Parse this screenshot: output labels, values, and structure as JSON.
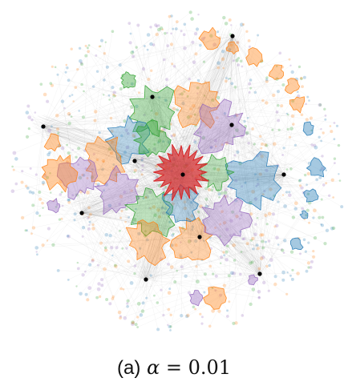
{
  "caption": {
    "label": "(a)",
    "symbol": "α",
    "equals": "=",
    "value": "0.01"
  },
  "colors": {
    "red": "#d62728",
    "blue": "#1f77b4",
    "green": "#2ca02c",
    "orange": "#ff7f0e",
    "purple": "#9467bd",
    "edge": "#555555",
    "hub": "#000000"
  },
  "clusters": [
    {
      "name": "red",
      "color": "#d62728"
    },
    {
      "name": "blue",
      "color": "#1f77b4"
    },
    {
      "name": "green",
      "color": "#2ca02c"
    },
    {
      "name": "orange",
      "color": "#ff7f0e"
    },
    {
      "name": "purple",
      "color": "#9467bd"
    }
  ]
}
